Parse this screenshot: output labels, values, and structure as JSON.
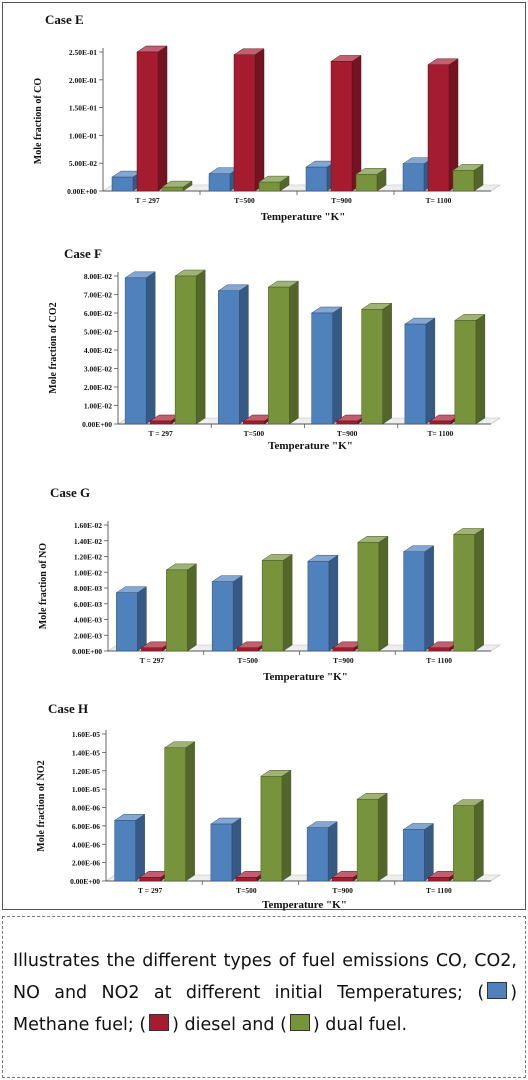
{
  "legend": [
    {
      "name": "Methane fuel",
      "color": "#4f81bd"
    },
    {
      "name": "diesel",
      "color": "#a51c30"
    },
    {
      "name": "dual fuel",
      "color": "#77933c"
    }
  ],
  "caption": {
    "text": "Illustrates the different types of fuel emissions CO, CO2, NO and NO2 at different initial Temperatures;",
    "methane": "Methane fuel;",
    "diesel": "diesel and",
    "dual": "dual fuel."
  },
  "chart_data": [
    {
      "type": "bar",
      "title": "Case E",
      "xlabel": "Temperature \"K\"",
      "ylabel": "Mole fraction of CO",
      "categories": [
        "T = 297",
        "T=500",
        "T=900",
        "T= 1100"
      ],
      "yticks": [
        "0.00E+00",
        "5.00E-02",
        "1.00E-01",
        "1.50E-01",
        "2.00E-01",
        "2.50E-01"
      ],
      "ylim": [
        0,
        0.25
      ],
      "series": [
        {
          "values": [
            0.025,
            0.031,
            0.043,
            0.049
          ]
        },
        {
          "values": [
            0.25,
            0.245,
            0.233,
            0.227
          ]
        },
        {
          "values": [
            0.007,
            0.016,
            0.03,
            0.037
          ]
        }
      ]
    },
    {
      "type": "bar",
      "title": "Case F",
      "xlabel": "Temperature \"K\"",
      "ylabel": "Mole fraction of CO2",
      "categories": [
        "T = 297",
        "T=500",
        "T=900",
        "T= 1100"
      ],
      "yticks": [
        "0.00E+00",
        "1.00E-02",
        "2.00E-02",
        "3.00E-02",
        "4.00E-02",
        "5.00E-02",
        "6.00E-02",
        "7.00E-02",
        "8.00E-02"
      ],
      "ylim": [
        0,
        0.08
      ],
      "series": [
        {
          "values": [
            0.079,
            0.072,
            0.06,
            0.054
          ]
        },
        {
          "values": [
            0.0005,
            0.0005,
            0.0005,
            0.0005
          ]
        },
        {
          "values": [
            0.08,
            0.074,
            0.062,
            0.056
          ]
        }
      ]
    },
    {
      "type": "bar",
      "title": "Case G",
      "xlabel": "Temperature \"K\"",
      "ylabel": "Mole fraction of NO",
      "categories": [
        "T = 297",
        "T=500",
        "T=900",
        "T= 1100"
      ],
      "yticks": [
        "0.00E+00",
        "2.00E-03",
        "4.00E-03",
        "6.00E-03",
        "8.00E-03",
        "1.00E-02",
        "1.20E-02",
        "1.40E-02",
        "1.60E-02"
      ],
      "ylim": [
        0,
        0.016
      ],
      "series": [
        {
          "values": [
            0.0074,
            0.0088,
            0.0114,
            0.0126
          ]
        },
        {
          "values": [
            0.0004,
            0.0004,
            0.0004,
            0.0004
          ]
        },
        {
          "values": [
            0.0103,
            0.0115,
            0.0138,
            0.0148
          ]
        }
      ]
    },
    {
      "type": "bar",
      "title": "Case H",
      "xlabel": "Temperature \"K\"",
      "ylabel": "Mole fraction of NO2",
      "categories": [
        "T = 297",
        "T=500",
        "T=900",
        "T= 1100"
      ],
      "yticks": [
        "0.00E+00",
        "2.00E-06",
        "4.00E-06",
        "6.00E-06",
        "8.00E-06",
        "1.00E-05",
        "1.20E-05",
        "1.40E-05",
        "1.60E-05"
      ],
      "ylim": [
        0,
        1.6e-05
      ],
      "series": [
        {
          "values": [
            6.6e-06,
            6.2e-06,
            5.8e-06,
            5.6e-06
          ]
        },
        {
          "values": [
            4e-07,
            4e-07,
            4e-07,
            4e-07
          ]
        },
        {
          "values": [
            1.45e-05,
            1.14e-05,
            8.9e-06,
            8.2e-06
          ]
        }
      ]
    }
  ]
}
